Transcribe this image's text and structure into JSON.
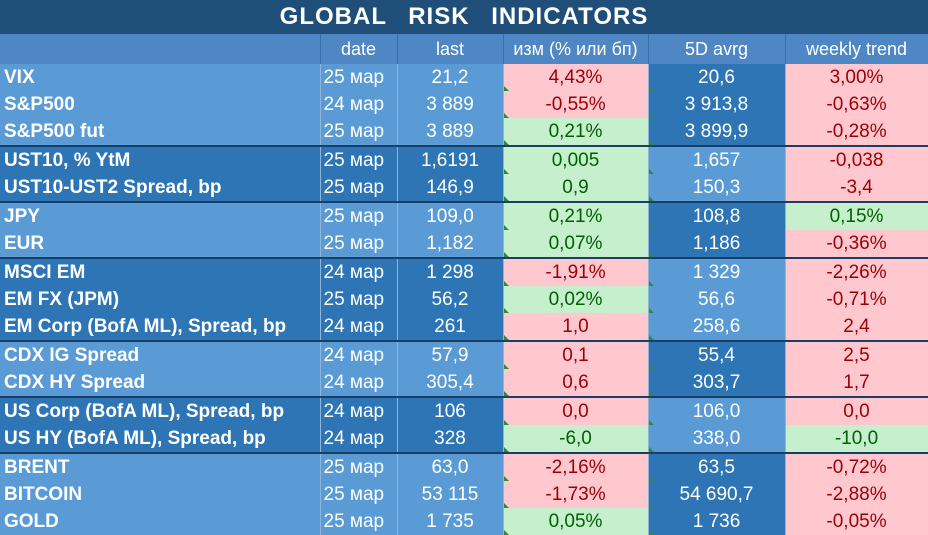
{
  "title": "GLOBAL   RISK   INDICATORS",
  "headers": [
    "",
    "date",
    "last",
    "изм (% или бп)",
    "5D avrg",
    "weekly trend"
  ],
  "rows": [
    {
      "name": "VIX",
      "date": "25 мар",
      "last": "21,2",
      "change": "4,43%",
      "change_sign": "neg",
      "avg": "20,6",
      "trend": "3,00%",
      "trend_sign": "neg",
      "band": "b-light",
      "group_start": false
    },
    {
      "name": "S&P500",
      "date": "24 мар",
      "last": "3 889",
      "change": "-0,55%",
      "change_sign": "neg",
      "avg": "3 913,8",
      "trend": "-0,63%",
      "trend_sign": "neg",
      "band": "b-light",
      "group_start": false
    },
    {
      "name": "S&P500 fut",
      "date": "25 мар",
      "last": "3 889",
      "change": "0,21%",
      "change_sign": "pos",
      "avg": "3 899,9",
      "trend": "-0,28%",
      "trend_sign": "neg",
      "band": "b-light",
      "group_start": false
    },
    {
      "name": "UST10, % YtM",
      "date": "25 мар",
      "last": "1,6191",
      "change": "0,005",
      "change_sign": "pos",
      "avg": "1,657",
      "trend": "-0,038",
      "trend_sign": "neg",
      "band": "b-dark",
      "group_start": true
    },
    {
      "name": "UST10-UST2 Spread, bp",
      "date": "25 мар",
      "last": "146,9",
      "change": "0,9",
      "change_sign": "pos",
      "avg": "150,3",
      "trend": "-3,4",
      "trend_sign": "neg",
      "band": "b-dark",
      "group_start": false
    },
    {
      "name": "JPY",
      "date": "25 мар",
      "last": "109,0",
      "change": "0,21%",
      "change_sign": "pos",
      "avg": "108,8",
      "trend": "0,15%",
      "trend_sign": "pos",
      "band": "b-light",
      "group_start": true
    },
    {
      "name": "EUR",
      "date": "25 мар",
      "last": "1,182",
      "change": "0,07%",
      "change_sign": "pos",
      "avg": "1,186",
      "trend": "-0,36%",
      "trend_sign": "neg",
      "band": "b-light",
      "group_start": false
    },
    {
      "name": "MSCI EM",
      "date": "24 мар",
      "last": "1 298",
      "change": "-1,91%",
      "change_sign": "neg",
      "avg": "1 329",
      "trend": "-2,26%",
      "trend_sign": "neg",
      "band": "b-dark",
      "group_start": true
    },
    {
      "name": "EM FX (JPM)",
      "date": "25 мар",
      "last": "56,2",
      "change": "0,02%",
      "change_sign": "pos",
      "avg": "56,6",
      "trend": "-0,71%",
      "trend_sign": "neg",
      "band": "b-dark",
      "group_start": false
    },
    {
      "name": "EM Corp (BofA ML), Spread, bp",
      "date": "24 мар",
      "last": "261",
      "change": "1,0",
      "change_sign": "neg",
      "avg": "258,6",
      "trend": "2,4",
      "trend_sign": "neg",
      "band": "b-dark",
      "group_start": false
    },
    {
      "name": "CDX IG Spread",
      "date": "24 мар",
      "last": "57,9",
      "change": "0,1",
      "change_sign": "neg",
      "avg": "55,4",
      "trend": "2,5",
      "trend_sign": "neg",
      "band": "b-light",
      "group_start": true
    },
    {
      "name": "CDX HY Spread",
      "date": "24 мар",
      "last": "305,4",
      "change": "0,6",
      "change_sign": "neg",
      "avg": "303,7",
      "trend": "1,7",
      "trend_sign": "neg",
      "band": "b-light",
      "group_start": false
    },
    {
      "name": "US Corp (BofA ML), Spread, bp",
      "date": "24 мар",
      "last": "106",
      "change": "0,0",
      "change_sign": "neg",
      "avg": "106,0",
      "trend": "0,0",
      "trend_sign": "neg",
      "band": "b-dark",
      "group_start": true
    },
    {
      "name": "US HY (BofA ML), Spread, bp",
      "date": "24 мар",
      "last": "328",
      "change": "-6,0",
      "change_sign": "pos",
      "avg": "338,0",
      "trend": "-10,0",
      "trend_sign": "pos",
      "band": "b-dark",
      "group_start": false
    },
    {
      "name": "BRENT",
      "date": "25 мар",
      "last": "63,0",
      "change": "-2,16%",
      "change_sign": "neg",
      "avg": "63,5",
      "trend": "-0,72%",
      "trend_sign": "neg",
      "band": "b-light",
      "group_start": true
    },
    {
      "name": "BITCOIN",
      "date": "25 мар",
      "last": "53 115",
      "change": "-1,73%",
      "change_sign": "neg",
      "avg": "54 690,7",
      "trend": "-2,88%",
      "trend_sign": "neg",
      "band": "b-light",
      "group_start": false
    },
    {
      "name": "GOLD",
      "date": "25 мар",
      "last": "1 735",
      "change": "0,05%",
      "change_sign": "pos",
      "avg": "1 736",
      "trend": "-0,05%",
      "trend_sign": "neg",
      "band": "b-light",
      "group_start": false
    }
  ]
}
